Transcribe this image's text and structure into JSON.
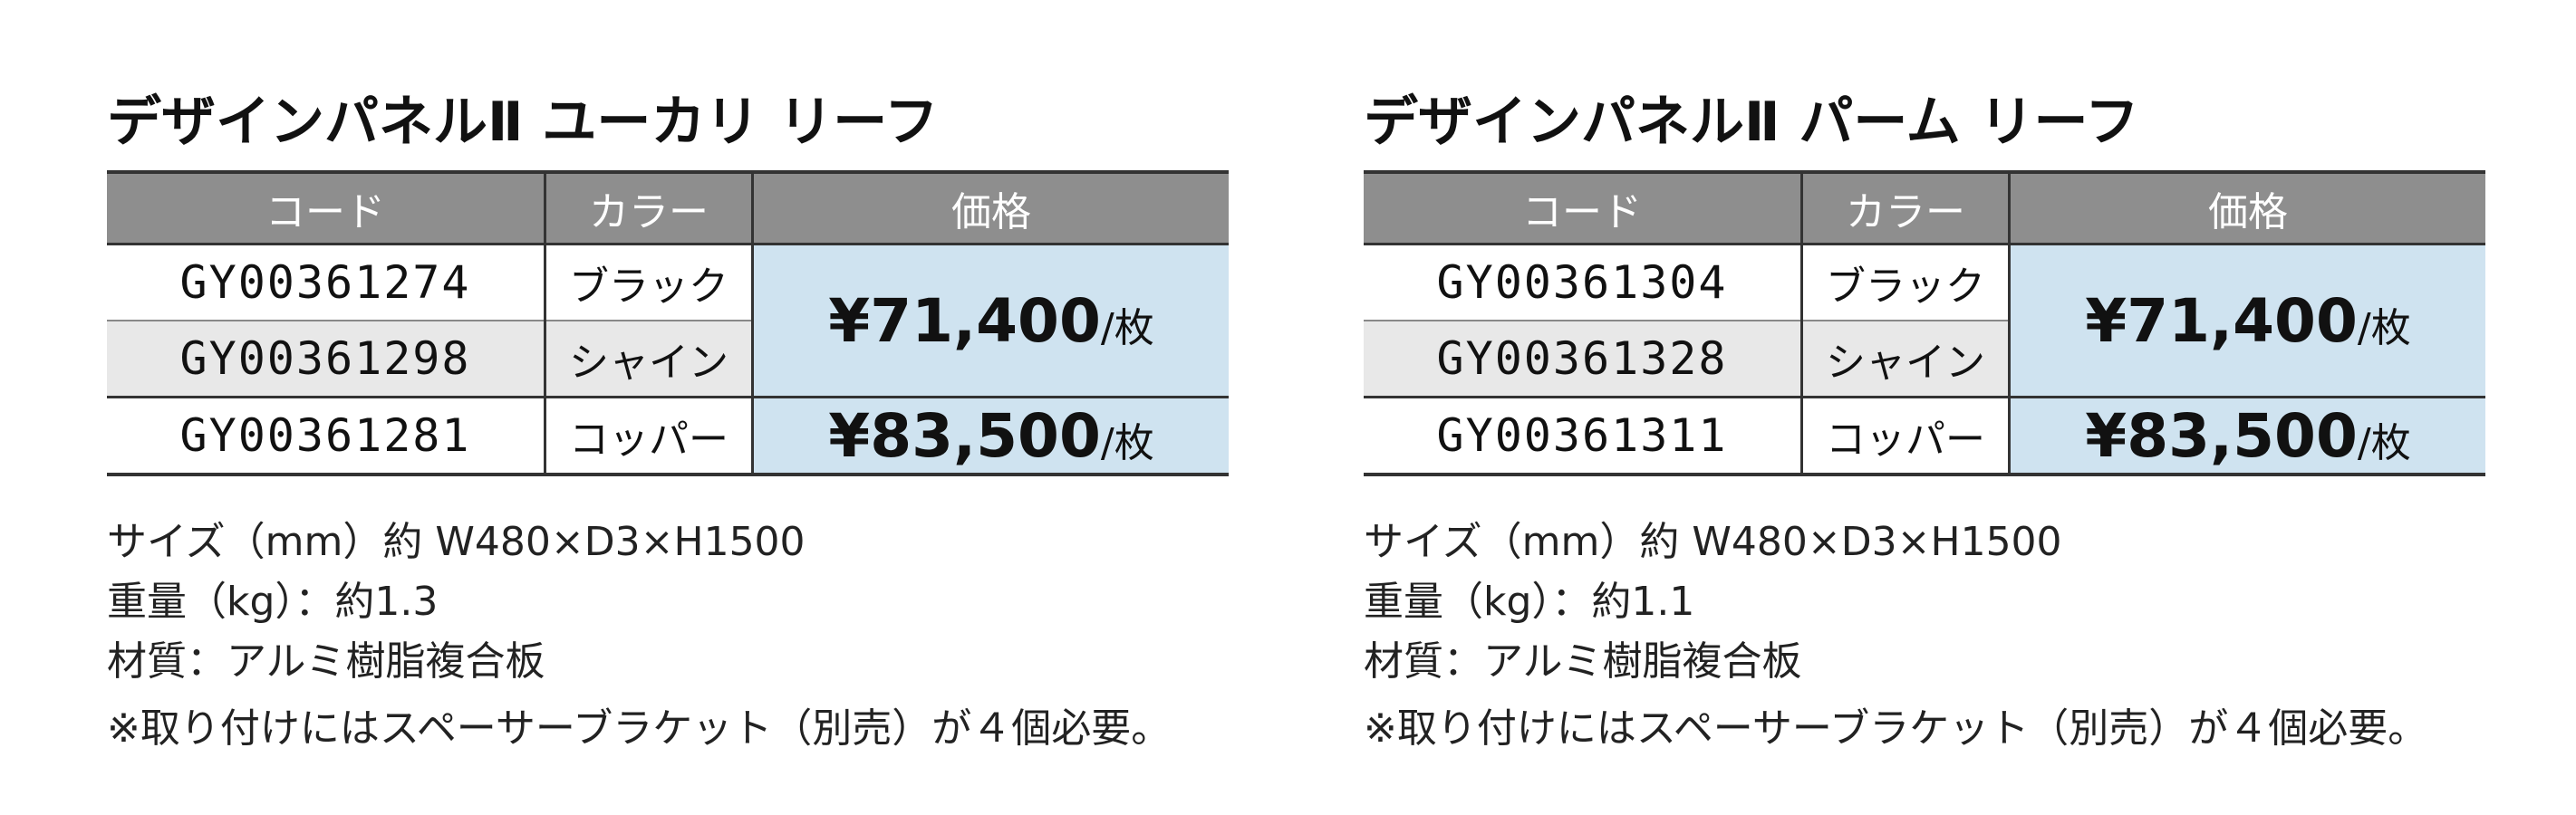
{
  "panels": [
    {
      "title": "デザインパネルⅡ ユーカリ リーフ",
      "headers": [
        "コード",
        "カラー",
        "価格"
      ],
      "rows": [
        {
          "code": "GY00361274",
          "color": "ブラック"
        },
        {
          "code": "GY00361298",
          "color": "シャイン"
        },
        {
          "code": "GY00361281",
          "color": "コッパー"
        }
      ],
      "prices": [
        {
          "amount": "¥71,400",
          "unit": "/枚"
        },
        {
          "amount": "¥83,500",
          "unit": "/枚"
        }
      ],
      "specs": [
        "サイズ（mm）約 W480×D3×H1500",
        "重量（kg）：約1.3",
        "材質：アルミ樹脂複合板",
        "※取り付けにはスペーサーブラケット（別売）が４個必要。"
      ]
    },
    {
      "title": "デザインパネルⅡ パーム リーフ",
      "headers": [
        "コード",
        "カラー",
        "価格"
      ],
      "rows": [
        {
          "code": "GY00361304",
          "color": "ブラック"
        },
        {
          "code": "GY00361328",
          "color": "シャイン"
        },
        {
          "code": "GY00361311",
          "color": "コッパー"
        }
      ],
      "prices": [
        {
          "amount": "¥71,400",
          "unit": "/枚"
        },
        {
          "amount": "¥83,500",
          "unit": "/枚"
        }
      ],
      "specs": [
        "サイズ（mm）約 W480×D3×H1500",
        "重量（kg）：約1.1",
        "材質：アルミ樹脂複合板",
        "※取り付けにはスペーサーブラケット（別売）が４個必要。"
      ]
    }
  ]
}
